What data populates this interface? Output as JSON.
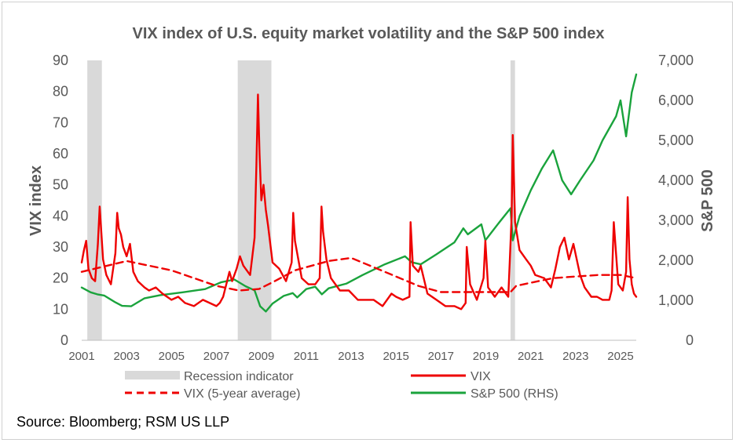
{
  "chart_data": {
    "type": "line",
    "title": "VIX index of U.S. equity market volatility and the S&P 500 index",
    "source": "Source: Bloomberg; RSM US LLP",
    "y_left": {
      "label": "VIX index",
      "range": [
        0,
        90
      ],
      "ticks": [
        0,
        10,
        20,
        30,
        40,
        50,
        60,
        70,
        80,
        90
      ],
      "tick_labels": [
        "0",
        "10",
        "20",
        "30",
        "40",
        "50",
        "60",
        "70",
        "80",
        "90"
      ]
    },
    "y_right": {
      "label": "S&P 500",
      "range": [
        0,
        7000
      ],
      "ticks": [
        0,
        1000,
        2000,
        3000,
        4000,
        5000,
        6000,
        7000
      ],
      "tick_labels": [
        "0",
        "1,000",
        "2,000",
        "3,000",
        "4,000",
        "5,000",
        "6,000",
        "7,000"
      ]
    },
    "x_axis": {
      "range": [
        2001,
        2025.7
      ],
      "ticks": [
        2001,
        2003,
        2005,
        2007,
        2009,
        2011,
        2013,
        2015,
        2017,
        2019,
        2021,
        2023,
        2025
      ],
      "tick_labels": [
        "2001",
        "2003",
        "2005",
        "2007",
        "2009",
        "2011",
        "2013",
        "2015",
        "2017",
        "2019",
        "2021",
        "2023",
        "2025"
      ]
    },
    "legend": [
      {
        "key": "recession",
        "label": "Recession indicator",
        "color": "#d9d9d9",
        "style": "band"
      },
      {
        "key": "vix",
        "label": "VIX",
        "color": "#ee0000",
        "style": "solid"
      },
      {
        "key": "vix_avg",
        "label": "VIX (5-year average)",
        "color": "#ee0000",
        "style": "dashed"
      },
      {
        "key": "sp500",
        "label": "S&P 500 (RHS)",
        "color": "#1aa33c",
        "style": "solid"
      }
    ],
    "recessions": [
      {
        "start": 2001.25,
        "end": 2001.9
      },
      {
        "start": 2007.95,
        "end": 2009.45
      },
      {
        "start": 2020.1,
        "end": 2020.3
      }
    ],
    "series": [
      {
        "name": "VIX",
        "axis": "left",
        "color": "#ee0000",
        "x": [
          2001.0,
          2001.1,
          2001.2,
          2001.3,
          2001.45,
          2001.6,
          2001.72,
          2001.8,
          2001.95,
          2002.1,
          2002.3,
          2002.5,
          2002.58,
          2002.65,
          2002.75,
          2002.85,
          2003.0,
          2003.15,
          2003.3,
          2003.5,
          2003.8,
          2004.0,
          2004.3,
          2004.6,
          2005.0,
          2005.3,
          2005.6,
          2006.0,
          2006.4,
          2006.7,
          2007.0,
          2007.15,
          2007.3,
          2007.58,
          2007.7,
          2007.9,
          2008.05,
          2008.2,
          2008.5,
          2008.7,
          2008.78,
          2008.85,
          2008.92,
          2009.0,
          2009.1,
          2009.2,
          2009.3,
          2009.5,
          2009.8,
          2010.1,
          2010.35,
          2010.42,
          2010.5,
          2010.8,
          2011.1,
          2011.4,
          2011.6,
          2011.68,
          2011.75,
          2011.9,
          2012.1,
          2012.5,
          2012.9,
          2013.3,
          2013.6,
          2014.0,
          2014.4,
          2014.8,
          2015.0,
          2015.3,
          2015.6,
          2015.65,
          2015.75,
          2016.0,
          2016.1,
          2016.4,
          2016.8,
          2017.2,
          2017.6,
          2017.9,
          2018.1,
          2018.15,
          2018.3,
          2018.6,
          2018.9,
          2018.98,
          2019.1,
          2019.4,
          2019.7,
          2020.0,
          2020.15,
          2020.2,
          2020.3,
          2020.5,
          2020.8,
          2021.0,
          2021.2,
          2021.6,
          2021.9,
          2022.1,
          2022.3,
          2022.5,
          2022.7,
          2022.9,
          2023.2,
          2023.4,
          2023.7,
          2023.95,
          2024.2,
          2024.5,
          2024.6,
          2024.7,
          2024.9,
          2025.1,
          2025.25,
          2025.32,
          2025.4,
          2025.5,
          2025.6,
          2025.7
        ],
        "y": [
          25,
          29,
          32,
          23,
          20,
          19,
          31,
          43,
          26,
          21,
          18,
          28,
          41,
          36,
          34,
          30,
          27,
          31,
          22,
          19,
          17,
          16,
          17,
          15,
          13,
          14,
          12,
          11,
          13,
          12,
          11,
          12,
          14,
          22,
          19,
          23,
          27,
          24,
          21,
          33,
          56,
          79,
          60,
          45,
          50,
          42,
          37,
          25,
          23,
          19,
          25,
          41,
          32,
          20,
          18,
          18,
          20,
          43,
          35,
          26,
          20,
          16,
          16,
          13,
          13,
          13,
          11,
          15,
          14,
          13,
          14,
          38,
          24,
          22,
          24,
          15,
          13,
          11,
          11,
          10,
          12,
          30,
          18,
          13,
          20,
          32,
          17,
          14,
          17,
          14,
          40,
          66,
          38,
          29,
          26,
          24,
          21,
          20,
          17,
          23,
          30,
          33,
          26,
          31,
          21,
          17,
          14,
          14,
          13,
          13,
          16,
          38,
          18,
          16,
          22,
          46,
          26,
          18,
          15,
          14
        ]
      },
      {
        "name": "VIX (5-year average)",
        "axis": "left",
        "color": "#ee0000",
        "x": [
          2001.0,
          2003.0,
          2005.0,
          2007.0,
          2008.0,
          2008.9,
          2009.6,
          2010.5,
          2012.0,
          2013.0,
          2014.5,
          2016.0,
          2017.0,
          2018.0,
          2019.0,
          2020.1,
          2020.35,
          2021.0,
          2022.0,
          2023.0,
          2024.0,
          2025.0,
          2025.7
        ],
        "y": [
          22,
          25.5,
          22.5,
          17.5,
          16,
          16.5,
          19,
          22.5,
          25.5,
          26.5,
          22,
          17.5,
          15.5,
          15.5,
          15.5,
          15.5,
          17.5,
          18.5,
          20,
          20.5,
          21,
          21,
          20
        ]
      },
      {
        "name": "S&P 500 (RHS)",
        "axis": "right",
        "color": "#1aa33c",
        "x": [
          2001.0,
          2001.4,
          2001.7,
          2002.0,
          2002.5,
          2002.8,
          2003.2,
          2003.8,
          2004.5,
          2005.5,
          2006.5,
          2007.2,
          2007.8,
          2008.3,
          2008.7,
          2008.95,
          2009.2,
          2009.5,
          2010.0,
          2010.4,
          2010.6,
          2011.0,
          2011.4,
          2011.7,
          2012.0,
          2012.8,
          2013.5,
          2014.5,
          2015.4,
          2015.7,
          2016.1,
          2016.8,
          2017.6,
          2018.0,
          2018.2,
          2018.8,
          2018.98,
          2019.6,
          2020.1,
          2020.2,
          2020.5,
          2021.0,
          2021.5,
          2022.0,
          2022.4,
          2022.8,
          2023.2,
          2023.8,
          2024.2,
          2024.8,
          2025.0,
          2025.25,
          2025.5,
          2025.7
        ],
        "y": [
          1320,
          1200,
          1150,
          1120,
          950,
          860,
          850,
          1050,
          1130,
          1200,
          1280,
          1450,
          1520,
          1350,
          1250,
          850,
          720,
          920,
          1110,
          1180,
          1070,
          1280,
          1340,
          1150,
          1300,
          1420,
          1630,
          1900,
          2100,
          1950,
          1900,
          2150,
          2450,
          2800,
          2650,
          2900,
          2500,
          2950,
          3300,
          2500,
          3100,
          3750,
          4300,
          4750,
          4000,
          3650,
          4000,
          4500,
          5000,
          5600,
          6000,
          5100,
          6200,
          6650
        ]
      }
    ]
  }
}
